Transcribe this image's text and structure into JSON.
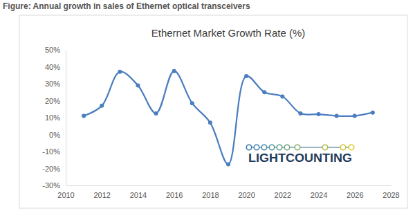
{
  "chart_data": {
    "type": "line",
    "title": "Ethernet Market Growth Rate (%)",
    "annotations": [
      "Figure: Annual growth in sales of Ethernet optical transceivers",
      "LIGHTCOUNTING"
    ],
    "x": [
      2011,
      2012,
      2013,
      2014,
      2015,
      2016,
      2017,
      2018,
      2019,
      2020,
      2021,
      2022,
      2023,
      2024,
      2025,
      2026,
      2027
    ],
    "values": [
      11,
      17,
      37,
      29,
      12.5,
      37.5,
      18.5,
      7,
      -17.5,
      34.5,
      25,
      22.5,
      12.5,
      12,
      11,
      11,
      13
    ],
    "color": "#4a7ebf",
    "marker": "circle",
    "line_style": "solid",
    "grid": false,
    "xlim": [
      2010,
      2028
    ],
    "xticks": [
      2010,
      2012,
      2014,
      2016,
      2018,
      2020,
      2022,
      2024,
      2026,
      2028
    ],
    "ylim": [
      -30,
      50
    ],
    "yticks": [
      {
        "value": -30,
        "label": "-30%"
      },
      {
        "value": -20,
        "label": "-20%"
      },
      {
        "value": -10,
        "label": "-10%"
      },
      {
        "value": 0,
        "label": "0%"
      },
      {
        "value": 10,
        "label": "10%"
      },
      {
        "value": 20,
        "label": "20%"
      },
      {
        "value": 30,
        "label": "30%"
      },
      {
        "value": 40,
        "label": "40%"
      },
      {
        "value": 50,
        "label": "50%"
      }
    ]
  }
}
